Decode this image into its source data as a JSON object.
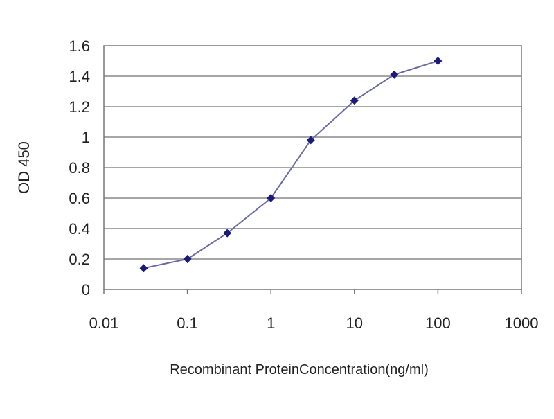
{
  "chart_data": {
    "type": "line",
    "title": "",
    "xlabel": "Recombinant ProteinConcentration(ng/ml)",
    "ylabel": "OD 450",
    "xscale": "log",
    "xlim": [
      0.01,
      1000
    ],
    "ylim": [
      0,
      1.6
    ],
    "xticks": [
      "0.01",
      "0.1",
      "1",
      "10",
      "100",
      "1000"
    ],
    "yticks": [
      "0",
      "0.2",
      "0.4",
      "0.6",
      "0.8",
      "1",
      "1.2",
      "1.4",
      "1.6"
    ],
    "grid": "horizontal",
    "series": [
      {
        "x": [
          0.03,
          0.1,
          0.3,
          1,
          3,
          10,
          30,
          100
        ],
        "y": [
          0.14,
          0.2,
          0.37,
          0.6,
          0.98,
          1.24,
          1.41,
          1.5
        ],
        "color": "#1a1a7a"
      }
    ]
  }
}
